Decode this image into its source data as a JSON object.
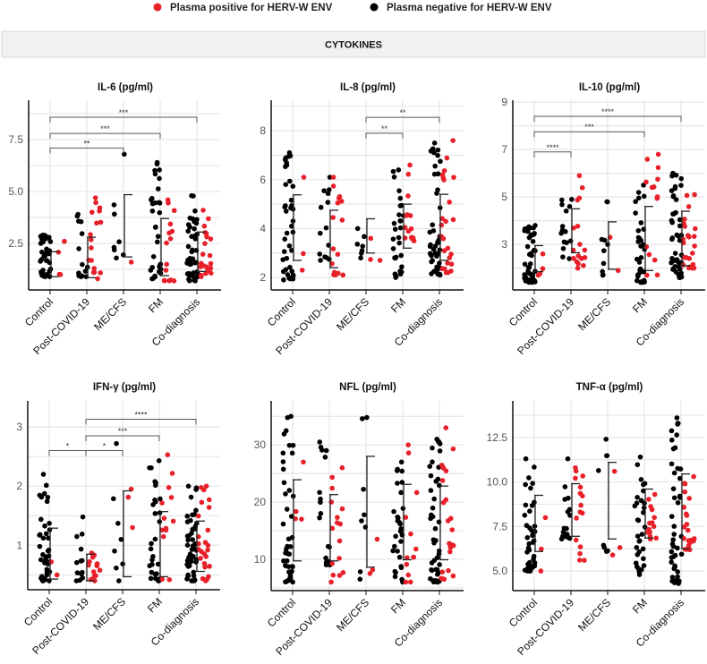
{
  "legend": {
    "positive_label": "Plasma positive for HERV-W ENV",
    "negative_label": "Plasma negative for HERV-W ENV",
    "positive_color": "#e8202a",
    "negative_color": "#000000"
  },
  "section_title": "CYTOKINES",
  "chart_data": [
    {
      "type": "scatter",
      "title": "IL-6 (pg/ml)",
      "categories": [
        "Control",
        "Post-COVID-19",
        "ME/CFS",
        "FM",
        "Co-diagnosis"
      ],
      "ylim": [
        0.26,
        9.4
      ],
      "yticks": [
        2.5,
        5.0,
        7.5
      ],
      "ytick_labels": [
        "2.5",
        "5.0",
        "7.5"
      ],
      "grid": true,
      "error_bars": [
        [
          0.9,
          2.1
        ],
        [
          0.85,
          2.8
        ],
        [
          1.85,
          4.85
        ],
        [
          0.95,
          3.7
        ],
        [
          1.15,
          3.05
        ]
      ],
      "groups": [
        {
          "negative": {
            "n": 40,
            "min": 0.9,
            "max": 2.9
          },
          "positive": {
            "n": 4,
            "min": 1.0,
            "max": 2.6
          }
        },
        {
          "negative": {
            "n": 15,
            "min": 0.9,
            "max": 3.9
          },
          "positive": {
            "n": 18,
            "min": 0.8,
            "max": 4.7
          }
        },
        {
          "negative": {
            "n": 8,
            "min": 1.8,
            "max": 6.8
          },
          "positive": {
            "n": 1,
            "min": 1.6,
            "max": 1.6
          }
        },
        {
          "negative": {
            "n": 32,
            "min": 0.8,
            "max": 6.4
          },
          "positive": {
            "n": 16,
            "min": 0.7,
            "max": 4.6
          }
        },
        {
          "negative": {
            "n": 45,
            "min": 0.7,
            "max": 4.8
          },
          "positive": {
            "n": 22,
            "min": 0.9,
            "max": 4.1
          }
        }
      ],
      "significance": [
        {
          "from": 0,
          "to": 2,
          "y": 7.1,
          "label": "**"
        },
        {
          "from": 0,
          "to": 3,
          "y": 7.8,
          "label": "***"
        },
        {
          "from": 0,
          "to": 4,
          "y": 8.58,
          "label": "***"
        }
      ]
    },
    {
      "type": "scatter",
      "title": "IL-8 (pg/ml)",
      "categories": [
        "Control",
        "Post-COVID-19",
        "ME/CFS",
        "FM",
        "Co-diagnosis"
      ],
      "ylim": [
        1.49,
        9.25
      ],
      "yticks": [
        2,
        4,
        6,
        8
      ],
      "ytick_labels": [
        "2",
        "4",
        "6",
        "8"
      ],
      "grid": true,
      "error_bars": [
        [
          2.7,
          5.38
        ],
        [
          2.4,
          4.75
        ],
        [
          3.0,
          4.4
        ],
        [
          3.2,
          5.0
        ],
        [
          2.7,
          5.4
        ]
      ],
      "groups": [
        {
          "negative": {
            "n": 40,
            "min": 1.9,
            "max": 7.1
          },
          "positive": {
            "n": 3,
            "min": 2.3,
            "max": 6.1
          }
        },
        {
          "negative": {
            "n": 14,
            "min": 2.7,
            "max": 6.1
          },
          "positive": {
            "n": 16,
            "min": 2.1,
            "max": 6.1
          }
        },
        {
          "negative": {
            "n": 7,
            "min": 2.8,
            "max": 4.0
          },
          "positive": {
            "n": 3,
            "min": 2.7,
            "max": 3.6
          }
        },
        {
          "negative": {
            "n": 30,
            "min": 2.0,
            "max": 6.4
          },
          "positive": {
            "n": 14,
            "min": 3.5,
            "max": 6.6
          }
        },
        {
          "negative": {
            "n": 45,
            "min": 2.1,
            "max": 7.5
          },
          "positive": {
            "n": 25,
            "min": 2.2,
            "max": 7.6
          }
        }
      ],
      "significance": [
        {
          "from": 2,
          "to": 3,
          "y": 7.9,
          "label": "**"
        },
        {
          "from": 2,
          "to": 4,
          "y": 8.55,
          "label": "**"
        }
      ]
    },
    {
      "type": "scatter",
      "title": "IL-10 (pg/ml)",
      "categories": [
        "Control",
        "Post-COVID-19",
        "ME/CFS",
        "FM",
        "Co-diagnosis"
      ],
      "ylim": [
        1.08,
        9.08
      ],
      "yticks": [
        3,
        5,
        7,
        9
      ],
      "ytick_labels": [
        "3",
        "5",
        "7",
        "9"
      ],
      "grid": true,
      "error_bars": [
        [
          1.85,
          2.95
        ],
        [
          2.65,
          4.5
        ],
        [
          1.95,
          3.95
        ],
        [
          1.9,
          4.6
        ],
        [
          2.1,
          4.4
        ]
      ],
      "groups": [
        {
          "negative": {
            "n": 45,
            "min": 1.4,
            "max": 3.8
          },
          "positive": {
            "n": 4,
            "min": 1.7,
            "max": 2.6
          }
        },
        {
          "negative": {
            "n": 15,
            "min": 2.4,
            "max": 4.9
          },
          "positive": {
            "n": 17,
            "min": 2.0,
            "max": 5.9
          }
        },
        {
          "negative": {
            "n": 10,
            "min": 1.7,
            "max": 4.8
          },
          "positive": {
            "n": 2,
            "min": 1.9,
            "max": 3.3
          }
        },
        {
          "negative": {
            "n": 32,
            "min": 1.4,
            "max": 5.5
          },
          "positive": {
            "n": 14,
            "min": 1.7,
            "max": 6.8
          }
        },
        {
          "negative": {
            "n": 45,
            "min": 1.6,
            "max": 6.0
          },
          "positive": {
            "n": 25,
            "min": 2.0,
            "max": 5.1
          }
        }
      ],
      "significance": [
        {
          "from": 0,
          "to": 1,
          "y": 6.9,
          "label": "****"
        },
        {
          "from": 0,
          "to": 3,
          "y": 7.75,
          "label": "***"
        },
        {
          "from": 0,
          "to": 4,
          "y": 8.4,
          "label": "****"
        }
      ]
    },
    {
      "type": "scatter",
      "title": "IFN-γ (pg/ml)",
      "categories": [
        "Control",
        "Post-COVID-19",
        "ME/CFS",
        "FM",
        "Co-diagnosis"
      ],
      "ylim": [
        0.25,
        3.44
      ],
      "yticks": [
        1,
        2,
        3
      ],
      "ytick_labels": [
        "1",
        "2",
        "3"
      ],
      "grid": true,
      "error_bars": [
        [
          0.43,
          1.29
        ],
        [
          0.4,
          0.85
        ],
        [
          0.47,
          1.92
        ],
        [
          0.47,
          1.57
        ],
        [
          0.56,
          1.41
        ]
      ],
      "groups": [
        {
          "negative": {
            "n": 38,
            "min": 0.4,
            "max": 2.2
          },
          "positive": {
            "n": 2,
            "min": 0.5,
            "max": 0.72
          }
        },
        {
          "negative": {
            "n": 13,
            "min": 0.4,
            "max": 1.48
          },
          "positive": {
            "n": 15,
            "min": 0.4,
            "max": 0.87
          }
        },
        {
          "negative": {
            "n": 8,
            "min": 0.4,
            "max": 2.72
          },
          "positive": {
            "n": 3,
            "min": 1.3,
            "max": 1.95
          }
        },
        {
          "negative": {
            "n": 30,
            "min": 0.4,
            "max": 2.43
          },
          "positive": {
            "n": 13,
            "min": 0.42,
            "max": 2.53
          }
        },
        {
          "negative": {
            "n": 45,
            "min": 0.4,
            "max": 2.0
          },
          "positive": {
            "n": 25,
            "min": 0.4,
            "max": 2.0
          }
        }
      ],
      "significance": [
        {
          "from": 0,
          "to": 1,
          "y": 2.6,
          "label": "*"
        },
        {
          "from": 1,
          "to": 2,
          "y": 2.6,
          "label": "*"
        },
        {
          "from": 1,
          "to": 3,
          "y": 2.85,
          "label": "***"
        },
        {
          "from": 1,
          "to": 4,
          "y": 3.13,
          "label": "****"
        }
      ]
    },
    {
      "type": "scatter",
      "title": "NFL (pg/ml)",
      "categories": [
        "Control",
        "Post-COVID-19",
        "ME/CFS",
        "FM",
        "Co-diagnosis"
      ],
      "ylim": [
        4.5,
        37.7
      ],
      "yticks": [
        10,
        20,
        30
      ],
      "ytick_labels": [
        "10",
        "20",
        "30"
      ],
      "grid": true,
      "error_bars": [
        [
          9.7,
          23.9
        ],
        [
          9.7,
          21.3
        ],
        [
          8.6,
          28.0
        ],
        [
          9.9,
          23.1
        ],
        [
          9.9,
          22.8
        ]
      ],
      "groups": [
        {
          "negative": {
            "n": 42,
            "min": 6,
            "max": 35
          },
          "positive": {
            "n": 4,
            "min": 17,
            "max": 27
          }
        },
        {
          "negative": {
            "n": 17,
            "min": 9,
            "max": 30.5
          },
          "positive": {
            "n": 16,
            "min": 6,
            "max": 26
          }
        },
        {
          "negative": {
            "n": 8,
            "min": 6.5,
            "max": 34.8
          },
          "positive": {
            "n": 3,
            "min": 7.5,
            "max": 13.5
          }
        },
        {
          "negative": {
            "n": 30,
            "min": 6,
            "max": 27
          },
          "positive": {
            "n": 13,
            "min": 6,
            "max": 30
          }
        },
        {
          "negative": {
            "n": 45,
            "min": 6,
            "max": 31
          },
          "positive": {
            "n": 22,
            "min": 6.5,
            "max": 33
          }
        }
      ],
      "significance": []
    },
    {
      "type": "scatter",
      "title": "TNF-α (pg/ml)",
      "categories": [
        "Control",
        "Post-COVID-19",
        "ME/CFS",
        "FM",
        "Co-diagnosis"
      ],
      "ylim": [
        3.9,
        14.55
      ],
      "yticks": [
        5.0,
        7.5,
        10.0,
        12.5
      ],
      "ytick_labels": [
        "5.0",
        "7.5",
        "10.0",
        "12.5"
      ],
      "grid": true,
      "error_bars": [
        [
          6.1,
          9.25
        ],
        [
          6.95,
          9.9
        ],
        [
          6.8,
          11.1
        ],
        [
          6.85,
          9.6
        ],
        [
          6.25,
          10.45
        ]
      ],
      "groups": [
        {
          "negative": {
            "n": 40,
            "min": 5.0,
            "max": 11.3
          },
          "positive": {
            "n": 3,
            "min": 5.0,
            "max": 8.0
          }
        },
        {
          "negative": {
            "n": 16,
            "min": 6.8,
            "max": 11.3
          },
          "positive": {
            "n": 16,
            "min": 5.6,
            "max": 10.8
          }
        },
        {
          "negative": {
            "n": 8,
            "min": 6.1,
            "max": 12.4
          },
          "positive": {
            "n": 3,
            "min": 5.9,
            "max": 10.6
          }
        },
        {
          "negative": {
            "n": 32,
            "min": 4.8,
            "max": 11.4
          },
          "positive": {
            "n": 14,
            "min": 6.8,
            "max": 9.3
          }
        },
        {
          "negative": {
            "n": 45,
            "min": 4.3,
            "max": 13.6
          },
          "positive": {
            "n": 22,
            "min": 6.2,
            "max": 10.3
          }
        }
      ],
      "significance": []
    }
  ]
}
